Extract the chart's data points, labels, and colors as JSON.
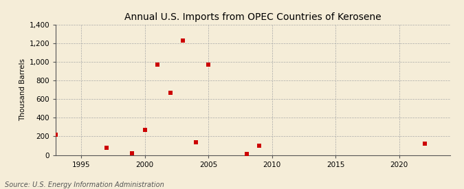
{
  "title": "Annual U.S. Imports from OPEC Countries of Kerosene",
  "ylabel": "Thousand Barrels",
  "source": "Source: U.S. Energy Information Administration",
  "background_color": "#f5edd8",
  "plot_background_color": "#f5edd8",
  "grid_color": "#aaaaaa",
  "scatter_color": "#cc0000",
  "x_values": [
    1993,
    1997,
    1999,
    2000,
    2001,
    2002,
    2003,
    2004,
    2005,
    2008,
    2009,
    2022
  ],
  "y_values": [
    220,
    80,
    15,
    270,
    970,
    670,
    1230,
    140,
    970,
    10,
    100,
    120
  ],
  "xlim": [
    1993,
    2024
  ],
  "ylim": [
    0,
    1400
  ],
  "yticks": [
    0,
    200,
    400,
    600,
    800,
    1000,
    1200,
    1400
  ],
  "ytick_labels": [
    "0",
    "200",
    "400",
    "600",
    "800",
    "1,000",
    "1,200",
    "1,400"
  ],
  "xticks": [
    1995,
    2000,
    2005,
    2010,
    2015,
    2020
  ],
  "xtick_labels": [
    "1995",
    "2000",
    "2005",
    "2010",
    "2015",
    "2020"
  ],
  "marker_size": 5,
  "marker_style": "s",
  "title_fontsize": 10,
  "axis_fontsize": 7.5,
  "label_fontsize": 7.5,
  "source_fontsize": 7
}
